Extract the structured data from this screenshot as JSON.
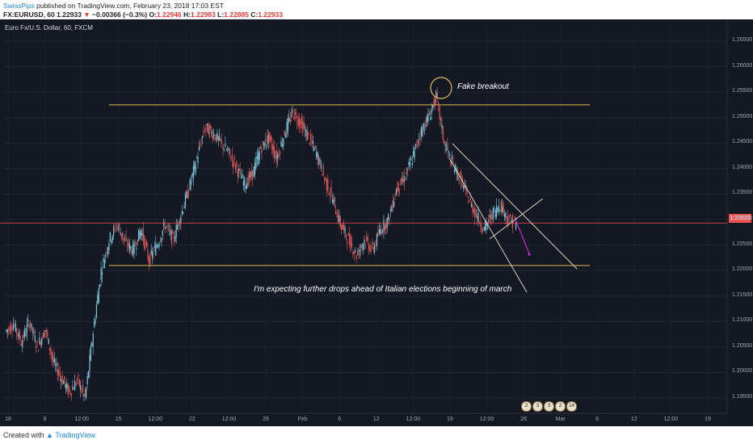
{
  "header": {
    "author": "SwissPips",
    "published": "published on TradingView.com, February 23, 2018 17:03 EST",
    "symbol": "FX:EURUSD, 60",
    "last": "1.22933",
    "change": "−0.00366 (−0.3%)",
    "open_label": "O:",
    "open": "1.22946",
    "high_label": "H:",
    "high": "1.22983",
    "low_label": "L:",
    "low": "1.22885",
    "close_label": "C:",
    "close": "1.22933"
  },
  "chart": {
    "title": "Euro Fx/U.S. Dollar, 60, FXCM",
    "current_price": "1.22933",
    "colors": {
      "bg": "#141823",
      "up": "#7dc7d9",
      "down": "#e05a5a",
      "level": "#e0b85a",
      "channel": "#d6d0c0",
      "arrow": "#c026d3",
      "price_line": "#ef5350"
    },
    "events": [
      "2",
      "3",
      "3",
      "2",
      "14"
    ]
  },
  "annotations": {
    "fake_breakout": "Fake breakout",
    "outlook": "I'm expecting further drops ahead of Italian elections beginning of march"
  },
  "footer": {
    "created_with": "Created with",
    "brand": "TradingView"
  },
  "chart_data": {
    "type": "candlestick",
    "title": "Euro Fx/U.S. Dollar, 60, FXCM",
    "x_tick_labels": [
      "18",
      "8",
      "12:00",
      "15",
      "12:00",
      "22",
      "12:00",
      "29",
      "Feb",
      "6",
      "12",
      "12:00",
      "19",
      "12:00",
      "26",
      "Mar",
      "6",
      "12",
      "12:00",
      "19"
    ],
    "y_tick_labels": [
      "1.26500",
      "1.26000",
      "1.25500",
      "1.25000",
      "1.24500",
      "1.24000",
      "1.23500",
      "1.23000",
      "1.22500",
      "1.22000",
      "1.21500",
      "1.21000",
      "1.20500",
      "1.20000",
      "1.19500"
    ],
    "ylim": [
      1.192,
      1.268
    ],
    "current_price": 1.22933,
    "levels": [
      {
        "name": "resistance",
        "value": 1.2525
      },
      {
        "name": "support",
        "value": 1.221
      }
    ],
    "price_path": [
      [
        0,
        1.208
      ],
      [
        1,
        1.2095
      ],
      [
        2,
        1.206
      ],
      [
        3,
        1.21
      ],
      [
        4,
        1.205
      ],
      [
        5,
        1.2085
      ],
      [
        6,
        1.202
      ],
      [
        7,
        1.199
      ],
      [
        8,
        1.196
      ],
      [
        9,
        1.1985
      ],
      [
        10,
        1.195
      ],
      [
        11,
        1.208
      ],
      [
        12,
        1.22
      ],
      [
        13,
        1.226
      ],
      [
        14,
        1.229
      ],
      [
        15,
        1.2255
      ],
      [
        16,
        1.224
      ],
      [
        17,
        1.228
      ],
      [
        18,
        1.222
      ],
      [
        19,
        1.225
      ],
      [
        20,
        1.229
      ],
      [
        21,
        1.226
      ],
      [
        22,
        1.231
      ],
      [
        23,
        1.236
      ],
      [
        24,
        1.242
      ],
      [
        25,
        1.248
      ],
      [
        26,
        1.247
      ],
      [
        27,
        1.245
      ],
      [
        28,
        1.243
      ],
      [
        29,
        1.24
      ],
      [
        30,
        1.237
      ],
      [
        31,
        1.239
      ],
      [
        32,
        1.244
      ],
      [
        33,
        1.246
      ],
      [
        34,
        1.242
      ],
      [
        35,
        1.247
      ],
      [
        36,
        1.251
      ],
      [
        37,
        1.249
      ],
      [
        38,
        1.246
      ],
      [
        39,
        1.243
      ],
      [
        40,
        1.238
      ],
      [
        41,
        1.234
      ],
      [
        42,
        1.229
      ],
      [
        43,
        1.226
      ],
      [
        44,
        1.223
      ],
      [
        45,
        1.226
      ],
      [
        46,
        1.224
      ],
      [
        47,
        1.228
      ],
      [
        48,
        1.23
      ],
      [
        49,
        1.236
      ],
      [
        50,
        1.238
      ],
      [
        51,
        1.242
      ],
      [
        52,
        1.247
      ],
      [
        53,
        1.25
      ],
      [
        54,
        1.254
      ],
      [
        55,
        1.245
      ],
      [
        56,
        1.241
      ],
      [
        57,
        1.238
      ],
      [
        58,
        1.234
      ],
      [
        59,
        1.231
      ],
      [
        60,
        1.228
      ],
      [
        61,
        1.231
      ],
      [
        62,
        1.233
      ],
      [
        63,
        1.23
      ],
      [
        64,
        1.2293
      ]
    ],
    "channel": {
      "upper": [
        [
          0,
          1.244
        ],
        [
          1,
          1.229
        ]
      ],
      "lower": [
        [
          0,
          1.24
        ],
        [
          1,
          1.225
        ]
      ]
    },
    "grid": true
  }
}
